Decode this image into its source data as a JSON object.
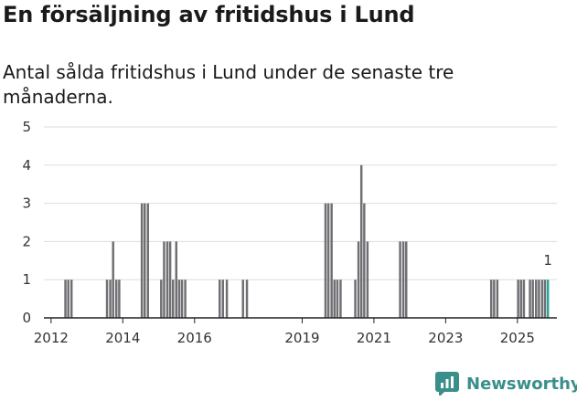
{
  "title": "En försäljning av fritidshus i Lund",
  "subtitle": "Antal sålda fritidshus i Lund under de senaste tre månaderna.",
  "brand": {
    "name": "Newsworthy",
    "color": "#3a8f8a",
    "icon": "newsworthy-logo-icon"
  },
  "colors": {
    "bar": "#707074",
    "highlight": "#25a59d",
    "grid": "#dddddd",
    "axis": "#222222"
  },
  "chart_data": {
    "type": "bar",
    "title": "En försäljning av fritidshus i Lund",
    "xlabel": "",
    "ylabel": "",
    "ylim": [
      0,
      5
    ],
    "yticks": [
      0,
      1,
      2,
      3,
      4,
      5
    ],
    "xlim": [
      2011.8,
      2026.1
    ],
    "xticks": [
      2012,
      2014,
      2016,
      2019,
      2021,
      2023,
      2025
    ],
    "xtick_labels": [
      "2012",
      "2014",
      "2016",
      "2019",
      "2021",
      "2023",
      "2025"
    ],
    "bar_width_years": 0.0833,
    "last_label": "1",
    "values_monthly": [
      {
        "x": 2012.4,
        "y": 1
      },
      {
        "x": 2012.48,
        "y": 1
      },
      {
        "x": 2012.57,
        "y": 1
      },
      {
        "x": 2013.56,
        "y": 1
      },
      {
        "x": 2013.65,
        "y": 1
      },
      {
        "x": 2013.73,
        "y": 2
      },
      {
        "x": 2013.82,
        "y": 1
      },
      {
        "x": 2013.9,
        "y": 1
      },
      {
        "x": 2014.53,
        "y": 3
      },
      {
        "x": 2014.61,
        "y": 3
      },
      {
        "x": 2014.7,
        "y": 3
      },
      {
        "x": 2015.07,
        "y": 1
      },
      {
        "x": 2015.15,
        "y": 2
      },
      {
        "x": 2015.24,
        "y": 2
      },
      {
        "x": 2015.32,
        "y": 2
      },
      {
        "x": 2015.4,
        "y": 1
      },
      {
        "x": 2015.49,
        "y": 2
      },
      {
        "x": 2015.57,
        "y": 1
      },
      {
        "x": 2015.65,
        "y": 1
      },
      {
        "x": 2015.74,
        "y": 1
      },
      {
        "x": 2016.7,
        "y": 1
      },
      {
        "x": 2016.79,
        "y": 1
      },
      {
        "x": 2016.9,
        "y": 1
      },
      {
        "x": 2017.35,
        "y": 1
      },
      {
        "x": 2017.46,
        "y": 1
      },
      {
        "x": 2019.65,
        "y": 3
      },
      {
        "x": 2019.73,
        "y": 3
      },
      {
        "x": 2019.82,
        "y": 3
      },
      {
        "x": 2019.9,
        "y": 1
      },
      {
        "x": 2019.98,
        "y": 1
      },
      {
        "x": 2020.07,
        "y": 1
      },
      {
        "x": 2020.48,
        "y": 1
      },
      {
        "x": 2020.57,
        "y": 2
      },
      {
        "x": 2020.65,
        "y": 4
      },
      {
        "x": 2020.73,
        "y": 3
      },
      {
        "x": 2020.82,
        "y": 2
      },
      {
        "x": 2021.73,
        "y": 2
      },
      {
        "x": 2021.82,
        "y": 2
      },
      {
        "x": 2021.9,
        "y": 2
      },
      {
        "x": 2024.27,
        "y": 1
      },
      {
        "x": 2024.35,
        "y": 1
      },
      {
        "x": 2024.44,
        "y": 1
      },
      {
        "x": 2025.02,
        "y": 1
      },
      {
        "x": 2025.1,
        "y": 1
      },
      {
        "x": 2025.18,
        "y": 1
      },
      {
        "x": 2025.35,
        "y": 1
      },
      {
        "x": 2025.43,
        "y": 1
      },
      {
        "x": 2025.52,
        "y": 1
      },
      {
        "x": 2025.6,
        "y": 1
      },
      {
        "x": 2025.69,
        "y": 1
      },
      {
        "x": 2025.77,
        "y": 1
      },
      {
        "x": 2025.85,
        "y": 1,
        "highlight": true
      }
    ]
  }
}
